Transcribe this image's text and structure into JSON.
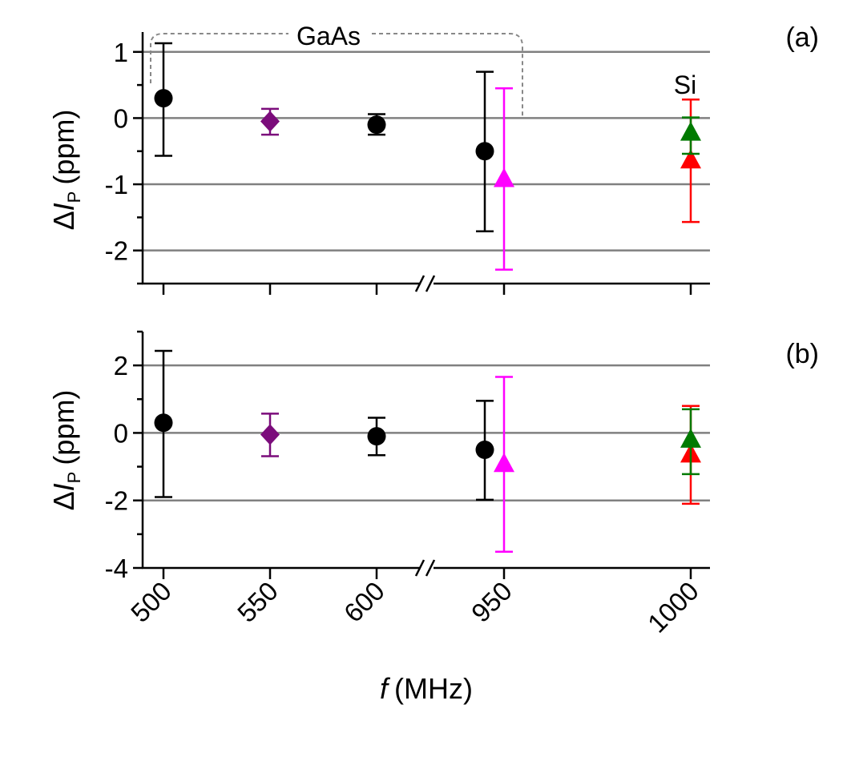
{
  "chart_data": {
    "type": "scatter",
    "xlabel_symbol": "f",
    "xlabel_unit": "(MHz)",
    "x_tick_labels": [
      "500",
      "550",
      "600",
      "950",
      "1000"
    ],
    "x_axis_break": "//",
    "panels": [
      {
        "id": "a",
        "label": "(a)",
        "ylabel_prefix": "Δ",
        "ylabel_symbol": "I",
        "ylabel_sub": "P",
        "ylabel_unit": "(ppm)",
        "ylim": [
          -2.5,
          1.3
        ],
        "yticks": [
          -2,
          -1,
          0,
          1
        ],
        "ytick_labels": [
          "-2",
          "-1",
          "0",
          "1"
        ],
        "gridlines": [
          -2,
          -1,
          0,
          1
        ],
        "minor_step": 0.5,
        "bracket_label": "GaAs",
        "annotation": "Si",
        "points": [
          {
            "name": "GaAs 500 MHz",
            "x": "500",
            "y": 0.3,
            "lo": -0.57,
            "hi": 1.13,
            "marker": "circle",
            "color": "#000000"
          },
          {
            "name": "GaAs 550 MHz",
            "x": "550",
            "y": -0.05,
            "lo": -0.25,
            "hi": 0.14,
            "marker": "diamond",
            "color": "#7b0c7b"
          },
          {
            "name": "GaAs 600 MHz",
            "x": "600",
            "y": -0.1,
            "lo": -0.25,
            "hi": 0.06,
            "marker": "circle",
            "color": "#000000"
          },
          {
            "name": "GaAs ~940 MHz",
            "x": "940",
            "y": -0.5,
            "lo": -1.71,
            "hi": 0.7,
            "marker": "circle",
            "color": "#000000"
          },
          {
            "name": "GaAs 950 MHz",
            "x": "950",
            "y": -0.92,
            "lo": -2.29,
            "hi": 0.45,
            "marker": "triangle",
            "color": "#ff00ff"
          },
          {
            "name": "Si 1000 MHz (red)",
            "x": "1000",
            "y": -0.64,
            "lo": -1.57,
            "hi": 0.28,
            "marker": "triangle",
            "color": "#ff0000"
          },
          {
            "name": "Si 1000 MHz (green)",
            "x": "1000",
            "y": -0.22,
            "lo": -0.54,
            "hi": 0.01,
            "marker": "triangle",
            "color": "#007a00"
          }
        ]
      },
      {
        "id": "b",
        "label": "(b)",
        "ylabel_prefix": "Δ",
        "ylabel_symbol": "I",
        "ylabel_sub": "P",
        "ylabel_unit": "(ppm)",
        "ylim": [
          -4,
          3
        ],
        "yticks": [
          -4,
          -2,
          0,
          2
        ],
        "ytick_labels": [
          "-4",
          "-2",
          "0",
          "2"
        ],
        "gridlines": [
          -2,
          0,
          2
        ],
        "minor_step": 1,
        "points": [
          {
            "name": "GaAs 500 MHz",
            "x": "500",
            "y": 0.3,
            "lo": -1.9,
            "hi": 2.43,
            "marker": "circle",
            "color": "#000000"
          },
          {
            "name": "GaAs 550 MHz",
            "x": "550",
            "y": -0.05,
            "lo": -0.69,
            "hi": 0.57,
            "marker": "diamond",
            "color": "#7b0c7b"
          },
          {
            "name": "GaAs 600 MHz",
            "x": "600",
            "y": -0.1,
            "lo": -0.66,
            "hi": 0.45,
            "marker": "circle",
            "color": "#000000"
          },
          {
            "name": "GaAs ~940 MHz",
            "x": "940",
            "y": -0.5,
            "lo": -1.98,
            "hi": 0.95,
            "marker": "circle",
            "color": "#000000"
          },
          {
            "name": "GaAs 950 MHz",
            "x": "950",
            "y": -0.92,
            "lo": -3.52,
            "hi": 1.66,
            "marker": "triangle",
            "color": "#ff00ff"
          },
          {
            "name": "Si 1000 MHz (red)",
            "x": "1000",
            "y": -0.64,
            "lo": -2.1,
            "hi": 0.8,
            "marker": "triangle",
            "color": "#ff0000"
          },
          {
            "name": "Si 1000 MHz (green)",
            "x": "1000",
            "y": -0.2,
            "lo": -1.22,
            "hi": 0.7,
            "marker": "triangle",
            "color": "#007a00"
          }
        ]
      }
    ]
  }
}
